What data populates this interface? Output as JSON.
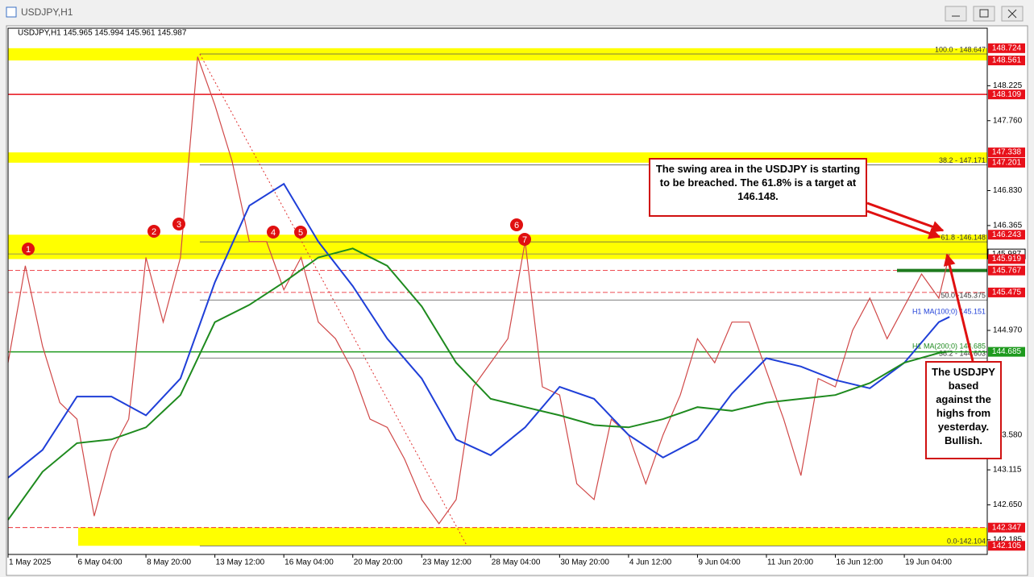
{
  "window": {
    "title": "USDJPY,H1"
  },
  "chart_data": {
    "type": "line",
    "header": "USDJPY,H1  145.965 145.994 145.961 145.987",
    "xlim": [
      0,
      909
    ],
    "ylim": [
      141.99,
      148.99
    ],
    "xticks": [
      {
        "value": 0,
        "label": "1 May 2025"
      },
      {
        "value": 64,
        "label": "6 May 04:00"
      },
      {
        "value": 128,
        "label": "8 May 20:00"
      },
      {
        "value": 192,
        "label": "13 May 12:00"
      },
      {
        "value": 256,
        "label": "16 May 04:00"
      },
      {
        "value": 320,
        "label": "20 May 20:00"
      },
      {
        "value": 384,
        "label": "23 May 12:00"
      },
      {
        "value": 448,
        "label": "28 May 04:00"
      },
      {
        "value": 512,
        "label": "30 May 20:00"
      },
      {
        "value": 576,
        "label": "4 Jun 12:00"
      },
      {
        "value": 640,
        "label": "9 Jun 04:00"
      },
      {
        "value": 704,
        "label": "11 Jun 20:00"
      },
      {
        "value": 768,
        "label": "16 Jun 12:00"
      },
      {
        "value": 832,
        "label": "19 Jun 04:00"
      }
    ],
    "yticks": [
      148.225,
      {
        "value": 147.76,
        "label": "147.760"
      },
      {
        "value": 146.83,
        "label": "146.830"
      },
      146.365,
      {
        "value": 144.97,
        "label": "144.970"
      },
      {
        "value": 143.58,
        "label": "143.580"
      },
      143.115,
      {
        "value": 142.65,
        "label": "142.650"
      },
      142.185
    ],
    "series": [
      {
        "color": "#d04848",
        "x": [
          0,
          16,
          32,
          48,
          64,
          80,
          96,
          112,
          128,
          144,
          160,
          176,
          192,
          208,
          224,
          240,
          256,
          272,
          288,
          304,
          320,
          336,
          352,
          368,
          384,
          400,
          416,
          432,
          448,
          464,
          480,
          496,
          512,
          528,
          544,
          560,
          576,
          592,
          608,
          624,
          640,
          656,
          672,
          688,
          704,
          720,
          736,
          752,
          768,
          784,
          800,
          816,
          832,
          848,
          864,
          874
        ],
        "values": [
          144.54,
          145.83,
          144.76,
          144.01,
          143.79,
          142.5,
          143.36,
          143.79,
          145.94,
          145.08,
          145.94,
          148.61,
          147.97,
          147.22,
          146.15,
          146.15,
          145.51,
          145.94,
          145.08,
          144.86,
          144.43,
          143.79,
          143.68,
          143.26,
          142.72,
          142.4,
          142.72,
          144.22,
          144.54,
          144.86,
          146.15,
          144.22,
          144.11,
          142.93,
          142.72,
          143.79,
          143.58,
          142.93,
          143.58,
          144.11,
          144.86,
          144.54,
          145.08,
          145.08,
          144.43,
          143.79,
          143.04,
          144.33,
          144.22,
          144.97,
          145.4,
          144.86,
          145.29,
          145.72,
          145.4,
          145.987
        ]
      },
      {
        "name": "H1 MA(100;0) 145.151",
        "color": "#1f3fd8",
        "x": [
          0,
          32,
          64,
          96,
          128,
          160,
          192,
          224,
          256,
          288,
          320,
          352,
          384,
          416,
          448,
          480,
          512,
          544,
          576,
          608,
          640,
          672,
          704,
          736,
          768,
          800,
          832,
          864,
          874
        ],
        "values": [
          143.01,
          143.38,
          144.09,
          144.09,
          143.84,
          144.33,
          145.61,
          146.63,
          146.92,
          146.15,
          145.56,
          144.86,
          144.33,
          143.52,
          143.31,
          143.68,
          144.22,
          144.06,
          143.58,
          143.28,
          143.52,
          144.13,
          144.6,
          144.49,
          144.31,
          144.2,
          144.54,
          145.08,
          145.15
        ]
      },
      {
        "name": "H1 MA(200;0) 144.685",
        "color": "#1e8a1e",
        "x": [
          0,
          32,
          64,
          96,
          128,
          160,
          192,
          224,
          256,
          288,
          320,
          352,
          384,
          416,
          448,
          480,
          512,
          544,
          576,
          608,
          640,
          672,
          704,
          736,
          768,
          800,
          832,
          864,
          874
        ],
        "values": [
          142.45,
          143.09,
          143.47,
          143.52,
          143.68,
          144.11,
          145.08,
          145.31,
          145.61,
          145.94,
          146.06,
          145.83,
          145.29,
          144.54,
          144.06,
          143.95,
          143.84,
          143.71,
          143.68,
          143.79,
          143.95,
          143.9,
          144.01,
          144.06,
          144.11,
          144.27,
          144.54,
          144.67,
          144.69
        ]
      }
    ],
    "zone_color": "#ffff00",
    "zones": [
      {
        "from": 148.561,
        "to": 148.724
      },
      {
        "from": 147.201,
        "to": 147.338
      },
      {
        "from": 145.919,
        "to": 146.243
      },
      {
        "from": 142.105,
        "to": 142.347
      }
    ],
    "levels": [
      {
        "value": 148.724,
        "color": "#e8101a",
        "line": "none"
      },
      {
        "value": 148.561,
        "color": "#e8101a",
        "line": "none"
      },
      {
        "value": 148.109,
        "color": "#e8101a",
        "line": "solid"
      },
      {
        "value": 147.338,
        "color": "#e8101a",
        "line": "none"
      },
      {
        "value": 147.201,
        "color": "#e8101a",
        "line": "none"
      },
      {
        "value": 146.243,
        "color": "#e8101a",
        "line": "none"
      },
      {
        "value": 145.987,
        "color": "#ffffff",
        "line": "solid"
      },
      {
        "value": 145.919,
        "color": "#e8101a",
        "line": "none"
      },
      {
        "value": 145.767,
        "color": "#e8101a",
        "line": "dashed"
      },
      {
        "value": 145.475,
        "color": "#e8101a",
        "line": "dashed"
      },
      {
        "value": 144.685,
        "color": "#1e9a1e",
        "line": "solid"
      },
      {
        "value": 142.347,
        "color": "#e8101a",
        "line": "dashed"
      },
      {
        "value": 142.105,
        "color": "#e8101a",
        "line": "none"
      }
    ],
    "fibonacci": [
      {
        "value": 148.647,
        "label": "100.0 - 148.647"
      },
      {
        "value": 147.171,
        "label": "38.2 - 147.171"
      },
      {
        "value": 146.148,
        "label": "61.8 -146.148"
      },
      {
        "value": 145.375,
        "label": "50.0 -145.375"
      },
      {
        "value": 144.603,
        "label": "38.2 - 144.603"
      },
      {
        "value": 142.104,
        "label": "0.0-142.104"
      }
    ],
    "markers": [
      "1",
      "2",
      "3",
      "4",
      "5",
      "6",
      "7"
    ],
    "annotations": [
      "The swing area in the USDJPY is starting to be breached.  The 61.8% is a target at 146.148.",
      "The USDJPY based against the highs from yesterday. Bullish."
    ]
  }
}
